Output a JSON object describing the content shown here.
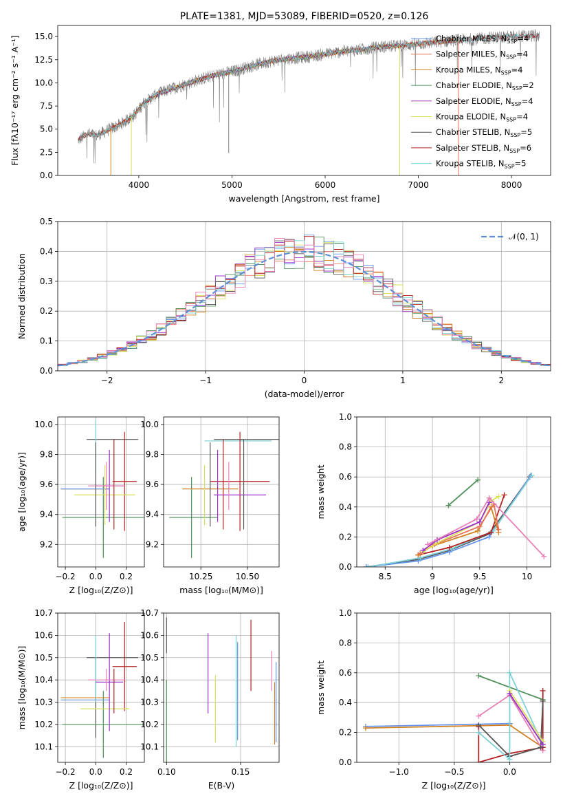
{
  "colors": {
    "chabrier_miles": "#6495ED",
    "salpeter_miles": "#E8735A",
    "kroupa_miles": "#D2801E",
    "chabrier_elodie": "#4E8F5A",
    "salpeter_elodie": "#9B30C8",
    "kroupa_elodie": "#D8E05A",
    "chabrier_stelib": "#555555",
    "salpeter_stelib": "#B22222",
    "kroupa_stelib": "#7ED0D6",
    "pink": "#E87FB8",
    "normal": "#5B8FD6",
    "spectrum": "#808080"
  },
  "chart_data": [
    {
      "id": "spectrum",
      "type": "line",
      "title": "PLATE=1381, MJD=53089, FIBERID=0520, z=0.126",
      "xlabel": "wavelength [Angstrom, rest frame]",
      "ylabel": "Flux [fλ10⁻¹⁷ erg cm⁻² s⁻¹ A⁻¹]",
      "xlim": [
        3130,
        8420
      ],
      "ylim": [
        0,
        16.2
      ],
      "xticks": [
        4000,
        5000,
        6000,
        7000,
        8000
      ],
      "yticks": [
        0.0,
        2.5,
        5.0,
        7.5,
        10.0,
        12.5,
        15.0
      ],
      "grid": false,
      "legend_position": "top-right",
      "legend": [
        {
          "label": "Chabrier MILES, N",
          "sub": "SSP",
          "val": "=4",
          "color": "chabrier_miles"
        },
        {
          "label": "Salpeter MILES, N",
          "sub": "SSP",
          "val": "=4",
          "color": "salpeter_miles"
        },
        {
          "label": "Kroupa MILES, N",
          "sub": "SSP",
          "val": "=4",
          "color": "kroupa_miles"
        },
        {
          "label": "Chabrier ELODIE, N",
          "sub": "SSP",
          "val": "=2",
          "color": "chabrier_elodie"
        },
        {
          "label": "Salpeter ELODIE, N",
          "sub": "SSP",
          "val": "=4",
          "color": "salpeter_elodie"
        },
        {
          "label": "Kroupa ELODIE, N",
          "sub": "SSP",
          "val": "=4",
          "color": "kroupa_elodie"
        },
        {
          "label": "Chabrier STELIB, N",
          "sub": "SSP",
          "val": "=5",
          "color": "chabrier_stelib"
        },
        {
          "label": "Salpeter STELIB, N",
          "sub": "SSP",
          "val": "=6",
          "color": "salpeter_stelib"
        },
        {
          "label": "Kroupa STELIB, N",
          "sub": "SSP",
          "val": "=5",
          "color": "kroupa_stelib"
        }
      ],
      "continuum": [
        [
          3350,
          3.8
        ],
        [
          3450,
          4.5
        ],
        [
          3550,
          4.3
        ],
        [
          3650,
          4.8
        ],
        [
          3800,
          5.5
        ],
        [
          3950,
          6.5
        ],
        [
          4050,
          7.8
        ],
        [
          4200,
          8.8
        ],
        [
          4400,
          9.5
        ],
        [
          4600,
          10.2
        ],
        [
          4800,
          10.8
        ],
        [
          5000,
          11.2
        ],
        [
          5200,
          11.8
        ],
        [
          5400,
          12.3
        ],
        [
          5600,
          12.6
        ],
        [
          5800,
          12.8
        ],
        [
          6000,
          13.1
        ],
        [
          6200,
          13.4
        ],
        [
          6400,
          13.6
        ],
        [
          6600,
          13.9
        ],
        [
          6800,
          14.0
        ],
        [
          7000,
          14.2
        ],
        [
          7200,
          14.4
        ],
        [
          7400,
          14.6
        ],
        [
          7600,
          14.7
        ],
        [
          7800,
          14.9
        ],
        [
          8000,
          15.0
        ],
        [
          8200,
          15.1
        ]
      ],
      "dips": [
        {
          "x": 3700,
          "model": "kroupa_miles",
          "y": 0
        },
        {
          "x": 3920,
          "model": "kroupa_elodie",
          "y": 0
        },
        {
          "x": 6800,
          "model": "kroupa_elodie",
          "y": 0
        },
        {
          "x": 7430,
          "model": "salpeter_miles",
          "y": 0
        },
        {
          "x": 4965,
          "model": "spectrum",
          "y": 2.4
        }
      ],
      "model_ranges": {
        "chabrier_miles": [
          3350,
          7400
        ],
        "salpeter_miles": [
          3350,
          7430
        ],
        "kroupa_miles": [
          3350,
          7430
        ],
        "chabrier_elodie": [
          3900,
          6800
        ],
        "salpeter_elodie": [
          3900,
          6800
        ],
        "kroupa_elodie": [
          3900,
          6800
        ],
        "chabrier_stelib": [
          3350,
          8300
        ],
        "salpeter_stelib": [
          3350,
          8300
        ],
        "kroupa_stelib": [
          3350,
          8300
        ]
      }
    },
    {
      "id": "residuals",
      "type": "histogram",
      "xlabel": "(data-model)/error",
      "ylabel": "Normed distribution",
      "xlim": [
        -2.5,
        2.5
      ],
      "ylim": [
        0,
        0.5
      ],
      "xticks": [
        -2,
        -1,
        0,
        1,
        2
      ],
      "xticklabels": [
        "−2",
        "−1",
        "0",
        "1",
        "2"
      ],
      "yticks": [
        0.0,
        0.1,
        0.2,
        0.3,
        0.4,
        0.5
      ],
      "grid": true,
      "legend_position": "top-right",
      "legend": [
        {
          "label": "𝒩(0, 1)",
          "color": "normal"
        }
      ],
      "bin_width": 0.1
    },
    {
      "id": "z-age",
      "type": "errorbar",
      "xlabel": "Z [log₁₀(Z/Z⊙)]",
      "ylabel": "age  [log₁₀(age/yr)]",
      "xlim": [
        -0.25,
        0.32
      ],
      "ylim": [
        9.05,
        10.05
      ],
      "xticks": [
        -0.2,
        0.0,
        0.2
      ],
      "xticklabels": [
        "−0.2",
        "0.0",
        "0.2"
      ],
      "yticks": [
        9.2,
        9.4,
        9.6,
        9.8,
        10.0
      ],
      "grid": true,
      "points": [
        {
          "c": "chabrier_stelib",
          "x": 0.11,
          "xerr": 0.17,
          "y": 9.9,
          "yerr": 0.0
        },
        {
          "c": "kroupa_stelib",
          "x": 0.0,
          "xerr": 0.0,
          "y": 9.85,
          "yerr": 0.18
        },
        {
          "c": "chabrier_elodie",
          "x": 0.05,
          "xerr": 0.27,
          "y": 9.38,
          "yerr": 0.27
        },
        {
          "c": "salpeter_stelib",
          "x": 0.19,
          "xerr": 0.08,
          "y": 9.62,
          "yerr": 0.33
        },
        {
          "c": "kroupa_miles",
          "x": -0.07,
          "xerr": 0.16,
          "y": 9.57,
          "yerr": 0.0
        },
        {
          "c": "chabrier_miles",
          "x": -0.07,
          "xerr": 0.16,
          "y": 9.57,
          "yerr": 0.0
        },
        {
          "c": "kroupa_elodie",
          "x": 0.06,
          "xerr": 0.2,
          "y": 9.53,
          "yerr": 0.2
        },
        {
          "c": "salpeter_elodie",
          "x": 0.09,
          "xerr": 0.09,
          "y": 9.59,
          "yerr": 0.24
        },
        {
          "c": "pink",
          "x": 0.07,
          "xerr": 0.12,
          "y": 9.59,
          "yerr": 0.16
        },
        {
          "c": "chabrier_stelib",
          "x": 0.0,
          "xerr": 0.0,
          "y": 9.6,
          "yerr": 0.28
        },
        {
          "c": "salpeter_stelib",
          "x": 0.12,
          "xerr": 0.0,
          "y": 9.6,
          "yerr": 0.3
        }
      ]
    },
    {
      "id": "mass-age",
      "type": "errorbar",
      "xlabel": "mass [log₁₀(M/M⊙)]",
      "ylabel": "",
      "xlim": [
        10.05,
        10.67
      ],
      "ylim": [
        9.05,
        10.05
      ],
      "xticks": [
        10.25,
        10.5
      ],
      "xticklabels": [
        "10.25",
        "10.50"
      ],
      "yticks": [
        9.2,
        9.4,
        9.6,
        9.8,
        10.0
      ],
      "grid": true,
      "points": [
        {
          "c": "chabrier_stelib",
          "x": 10.5,
          "xerr": 0.18,
          "y": 9.9,
          "yerr": 0.0
        },
        {
          "c": "kroupa_stelib",
          "x": 10.45,
          "xerr": 0.18,
          "y": 9.89,
          "yerr": 0.0
        },
        {
          "c": "chabrier_elodie",
          "x": 10.2,
          "xerr": 0.0,
          "y": 9.38,
          "yerr": 0.27
        },
        {
          "c": "chabrier_elodie",
          "x": 10.21,
          "xerr": 0.13,
          "y": 9.38,
          "yerr": 0.0
        },
        {
          "c": "salpeter_stelib",
          "x": 10.46,
          "xerr": 0.16,
          "y": 9.62,
          "yerr": 0.33
        },
        {
          "c": "kroupa_miles",
          "x": 10.3,
          "xerr": 0.15,
          "y": 9.57,
          "yerr": 0.0
        },
        {
          "c": "kroupa_elodie",
          "x": 10.27,
          "xerr": 0.0,
          "y": 9.53,
          "yerr": 0.2
        },
        {
          "c": "salpeter_elodie",
          "x": 10.46,
          "xerr": 0.14,
          "y": 9.53,
          "yerr": 0.0
        },
        {
          "c": "salpeter_elodie",
          "x": 10.34,
          "xerr": 0.0,
          "y": 9.59,
          "yerr": 0.24
        },
        {
          "c": "pink",
          "x": 10.4,
          "xerr": 0.0,
          "y": 9.59,
          "yerr": 0.16
        },
        {
          "c": "chabrier_stelib",
          "x": 10.3,
          "xerr": 0.0,
          "y": 9.6,
          "yerr": 0.28
        },
        {
          "c": "salpeter_stelib",
          "x": 10.37,
          "xerr": 0.0,
          "y": 9.6,
          "yerr": 0.3
        },
        {
          "c": "chabrier_stelib",
          "x": 10.48,
          "xerr": 0.0,
          "y": 9.6,
          "yerr": 0.3
        }
      ]
    },
    {
      "id": "age-weight",
      "type": "line",
      "xlabel": "age  [log₁₀(age/yr)]",
      "ylabel": "mass weight",
      "xlim": [
        8.2,
        10.25
      ],
      "ylim": [
        0,
        1.0
      ],
      "xticks": [
        8.5,
        9.0,
        9.5,
        10.0
      ],
      "yticks": [
        0.0,
        0.2,
        0.4,
        0.6,
        0.8,
        1.0
      ],
      "grid": true,
      "series": [
        {
          "c": "chabrier_elodie",
          "x": [
            9.17,
            9.48
          ],
          "y": [
            0.41,
            0.58
          ]
        },
        {
          "c": "chabrier_stelib",
          "x": [
            8.3,
            8.85,
            9.18,
            9.6,
            10.03
          ],
          "y": [
            0.0,
            0.05,
            0.11,
            0.22,
            0.6
          ]
        },
        {
          "c": "chabrier_miles",
          "x": [
            8.3,
            8.85,
            9.18,
            9.6,
            10.04
          ],
          "y": [
            0.0,
            0.04,
            0.1,
            0.2,
            0.61
          ]
        },
        {
          "c": "kroupa_stelib",
          "x": [
            8.32,
            8.87,
            9.2,
            9.64,
            10.05
          ],
          "y": [
            0.0,
            0.06,
            0.12,
            0.24,
            0.61
          ]
        },
        {
          "c": "salpeter_stelib",
          "x": [
            8.85,
            9.18,
            9.62,
            9.76
          ],
          "y": [
            0.08,
            0.13,
            0.23,
            0.48
          ]
        },
        {
          "c": "kroupa_miles",
          "x": [
            8.85,
            9.0,
            9.48,
            9.62,
            9.7
          ],
          "y": [
            0.08,
            0.14,
            0.24,
            0.4,
            0.23
          ]
        },
        {
          "c": "salpeter_miles",
          "x": [
            8.87,
            9.02,
            9.5,
            9.65,
            9.7
          ],
          "y": [
            0.09,
            0.15,
            0.27,
            0.42,
            0.25
          ]
        },
        {
          "c": "kroupa_elodie",
          "x": [
            8.9,
            9.05,
            9.5,
            9.62,
            9.7
          ],
          "y": [
            0.1,
            0.16,
            0.3,
            0.44,
            0.47
          ]
        },
        {
          "c": "salpeter_elodie",
          "x": [
            8.9,
            9.05,
            9.5,
            9.6
          ],
          "y": [
            0.11,
            0.18,
            0.3,
            0.43
          ]
        },
        {
          "c": "pink",
          "x": [
            8.95,
            9.47,
            9.6,
            10.18
          ],
          "y": [
            0.15,
            0.32,
            0.46,
            0.07
          ]
        }
      ]
    },
    {
      "id": "z-mass",
      "type": "errorbar",
      "xlabel": "Z [log₁₀(Z/Z⊙)]",
      "ylabel": "mass [log₁₀(M/M⊙)]",
      "xlim": [
        -0.25,
        0.32
      ],
      "ylim": [
        10.03,
        10.7
      ],
      "xticks": [
        -0.2,
        0.0,
        0.2
      ],
      "xticklabels": [
        "−0.2",
        "0.0",
        "0.2"
      ],
      "yticks": [
        10.1,
        10.2,
        10.3,
        10.4,
        10.5,
        10.6,
        10.7
      ],
      "grid": true,
      "points": [
        {
          "c": "chabrier_stelib",
          "x": 0.11,
          "xerr": 0.17,
          "y": 10.5,
          "yerr": 0.0
        },
        {
          "c": "chabrier_stelib",
          "x": 0.0,
          "xerr": 0.0,
          "y": 10.32,
          "yerr": 0.18
        },
        {
          "c": "kroupa_stelib",
          "x": 0.0,
          "xerr": 0.0,
          "y": 10.45,
          "yerr": 0.15
        },
        {
          "c": "chabrier_elodie",
          "x": 0.05,
          "xerr": 0.27,
          "y": 10.2,
          "yerr": 0.0
        },
        {
          "c": "chabrier_elodie",
          "x": 0.05,
          "xerr": 0.0,
          "y": 10.2,
          "yerr": 0.15
        },
        {
          "c": "salpeter_stelib",
          "x": 0.19,
          "xerr": 0.08,
          "y": 10.46,
          "yerr": 0.2
        },
        {
          "c": "kroupa_miles",
          "x": -0.07,
          "xerr": 0.16,
          "y": 10.32,
          "yerr": 0.0
        },
        {
          "c": "chabrier_miles",
          "x": -0.07,
          "xerr": 0.16,
          "y": 10.31,
          "yerr": 0.0
        },
        {
          "c": "kroupa_elodie",
          "x": 0.06,
          "xerr": 0.16,
          "y": 10.27,
          "yerr": 0.0
        },
        {
          "c": "salpeter_elodie",
          "x": 0.09,
          "xerr": 0.09,
          "y": 10.39,
          "yerr": 0.22
        },
        {
          "c": "pink",
          "x": 0.07,
          "xerr": 0.12,
          "y": 10.4,
          "yerr": 0.05
        },
        {
          "c": "salpeter_stelib",
          "x": 0.12,
          "xerr": 0.0,
          "y": 10.35,
          "yerr": 0.1
        }
      ]
    },
    {
      "id": "ebv-mass",
      "type": "errorbar",
      "xlabel": "E(B-V)",
      "ylabel": "",
      "xlim": [
        0.098,
        0.176
      ],
      "ylim": [
        10.03,
        10.7
      ],
      "xticks": [
        0.1,
        0.15
      ],
      "xticklabels": [
        "0.10",
        "0.15"
      ],
      "yticks": [
        10.1,
        10.2,
        10.3,
        10.4,
        10.5,
        10.6,
        10.7
      ],
      "grid": true,
      "points": [
        {
          "c": "chabrier_elodie",
          "x": 0.1,
          "xerr": 0.0,
          "y": 10.2,
          "yerr": 0.2
        },
        {
          "c": "chabrier_stelib",
          "x": 0.1,
          "xerr": 0.0,
          "y": 10.6,
          "yerr": 0.08
        },
        {
          "c": "salpeter_elodie",
          "x": 0.128,
          "xerr": 0.0,
          "y": 10.43,
          "yerr": 0.18
        },
        {
          "c": "kroupa_elodie",
          "x": 0.133,
          "xerr": 0.0,
          "y": 10.27,
          "yerr": 0.15
        },
        {
          "c": "kroupa_stelib",
          "x": 0.147,
          "xerr": 0.0,
          "y": 10.35,
          "yerr": 0.25
        },
        {
          "c": "chabrier_miles",
          "x": 0.148,
          "xerr": 0.0,
          "y": 10.35,
          "yerr": 0.22
        },
        {
          "c": "salpeter_stelib",
          "x": 0.157,
          "xerr": 0.0,
          "y": 10.51,
          "yerr": 0.16
        },
        {
          "c": "pink",
          "x": 0.171,
          "xerr": 0.0,
          "y": 10.44,
          "yerr": 0.09
        },
        {
          "c": "kroupa_miles",
          "x": 0.173,
          "xerr": 0.0,
          "y": 10.25,
          "yerr": 0.14
        },
        {
          "c": "chabrier_miles",
          "x": 0.174,
          "xerr": 0.0,
          "y": 10.3,
          "yerr": 0.18
        }
      ]
    },
    {
      "id": "z-weight",
      "type": "line",
      "xlabel": "Z [log₁₀(Z/Z⊙)]",
      "ylabel": "mass weight",
      "xlim": [
        -1.38,
        0.37
      ],
      "ylim": [
        0,
        1.0
      ],
      "xticks": [
        -1.0,
        -0.5,
        0.0
      ],
      "xticklabels": [
        "−1.0",
        "−0.5",
        "0.0"
      ],
      "yticks": [
        0.0,
        0.2,
        0.4,
        0.6,
        0.8,
        1.0
      ],
      "grid": true,
      "series": [
        {
          "c": "chabrier_miles",
          "x": [
            -1.3,
            0.0
          ],
          "y": [
            0.24,
            0.26
          ]
        },
        {
          "c": "kroupa_miles",
          "x": [
            -1.3,
            0.0,
            0.3
          ],
          "y": [
            0.23,
            0.25,
            0.1
          ]
        },
        {
          "c": "chabrier_elodie",
          "x": [
            -0.28,
            0.3
          ],
          "y": [
            0.58,
            0.42
          ]
        },
        {
          "c": "pink",
          "x": [
            -0.28,
            0.0,
            0.3
          ],
          "y": [
            0.31,
            0.45,
            0.08
          ]
        },
        {
          "c": "salpeter_stelib",
          "x": [
            -0.28,
            -0.28,
            0.0,
            0.3,
            0.3
          ],
          "y": [
            0.24,
            0.0,
            0.06,
            0.1,
            0.48
          ]
        },
        {
          "c": "chabrier_stelib",
          "x": [
            -0.28,
            0.0,
            0.28,
            0.3
          ],
          "y": [
            0.25,
            0.04,
            0.1,
            0.41
          ]
        },
        {
          "c": "kroupa_stelib",
          "x": [
            -0.28,
            0.0,
            0.0,
            0.3
          ],
          "y": [
            0.2,
            0.02,
            0.6,
            0.12
          ]
        },
        {
          "c": "kroupa_elodie",
          "x": [
            0.0,
            0.3
          ],
          "y": [
            0.48,
            0.14
          ]
        },
        {
          "c": "salpeter_elodie",
          "x": [
            0.0,
            0.3
          ],
          "y": [
            0.46,
            0.12
          ]
        }
      ]
    }
  ]
}
